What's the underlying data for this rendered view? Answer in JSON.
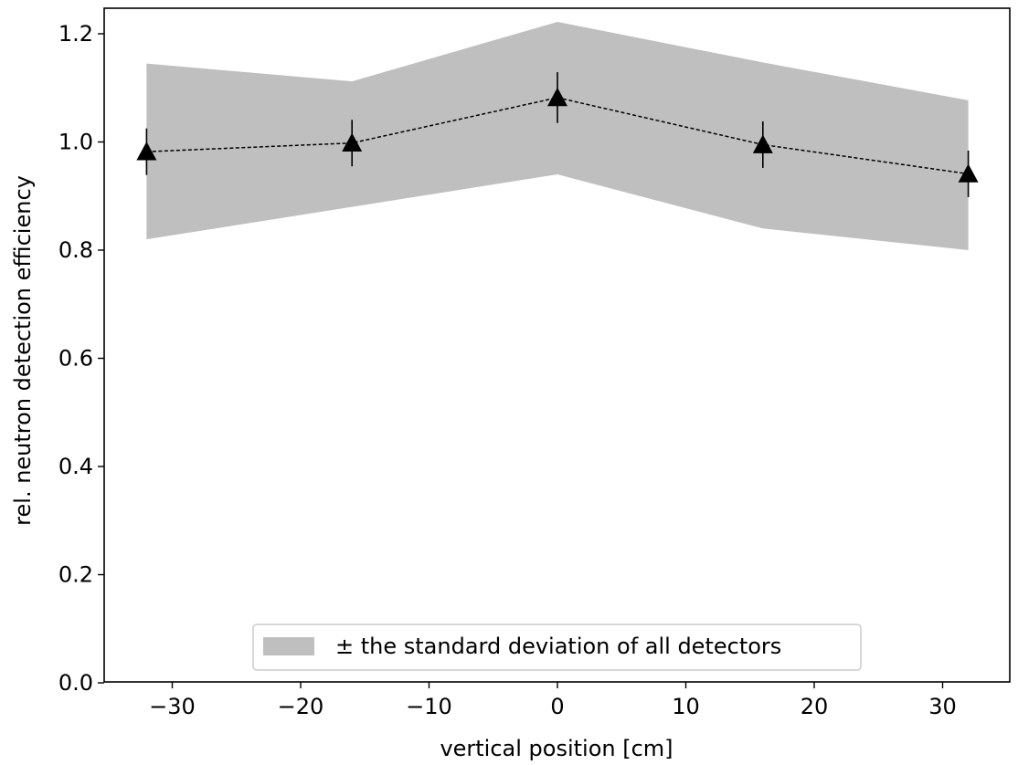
{
  "chart_data": {
    "type": "line",
    "title": "",
    "xlabel": "vertical position [cm]",
    "ylabel": "rel. neutron detection efficiency",
    "xlim": [
      -35,
      35
    ],
    "ylim": [
      0.0,
      1.25
    ],
    "x_ticks": [
      -30,
      -20,
      -10,
      0,
      10,
      20,
      30
    ],
    "x_tick_labels": [
      "−30",
      "−20",
      "−10",
      "0",
      "10",
      "20",
      "30"
    ],
    "y_ticks": [
      0.0,
      0.2,
      0.4,
      0.6,
      0.8,
      1.0,
      1.2
    ],
    "y_tick_labels": [
      "0.0",
      "0.2",
      "0.4",
      "0.6",
      "0.8",
      "1.0",
      "1.2"
    ],
    "grid": false,
    "legend_position": "bottom-center",
    "series": [
      {
        "kind": "band",
        "name": "± the standard deviation of all detectors",
        "color": "#bfbfbf",
        "x": [
          -32,
          -16,
          0,
          16,
          32
        ],
        "lower": [
          0.82,
          0.88,
          0.94,
          0.84,
          0.8
        ],
        "upper": [
          1.145,
          1.112,
          1.222,
          1.147,
          1.077
        ]
      },
      {
        "kind": "errorbar",
        "color": "#000000",
        "marker": "triangle",
        "linestyle": "dashed",
        "x": [
          -32,
          -16,
          0,
          16,
          32
        ],
        "y": [
          0.982,
          0.998,
          1.082,
          0.995,
          0.941
        ],
        "yerr": [
          0.043,
          0.043,
          0.047,
          0.043,
          0.043
        ]
      }
    ]
  }
}
